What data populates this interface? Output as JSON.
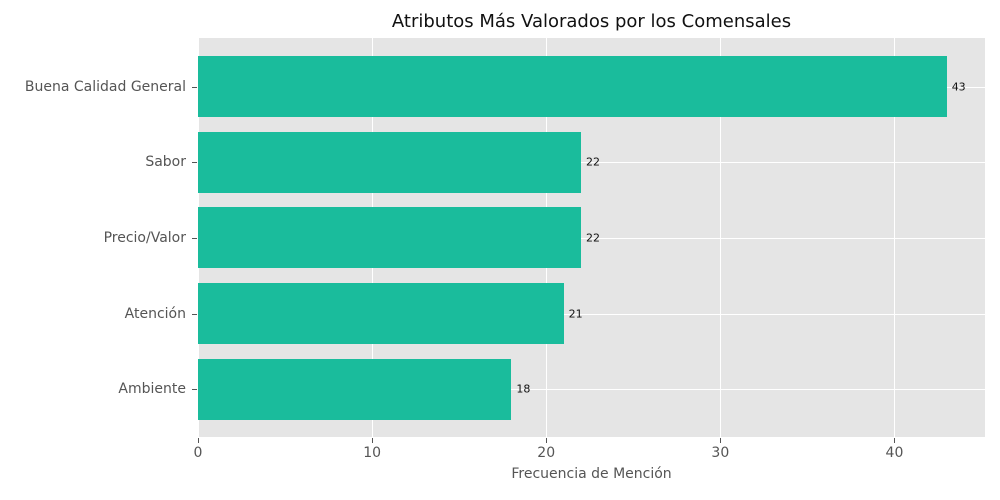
{
  "chart_data": {
    "type": "bar",
    "orientation": "horizontal",
    "title": "Atributos Más Valorados por los Comensales",
    "xlabel": "Frecuencia de Mención",
    "ylabel": "",
    "categories": [
      "Buena Calidad General",
      "Sabor",
      "Precio/Valor",
      "Atención",
      "Ambiente"
    ],
    "values": [
      43,
      22,
      22,
      21,
      18
    ],
    "data_labels": [
      "43",
      "22",
      "22",
      "21",
      "18"
    ],
    "xlim": [
      0,
      45.2
    ],
    "xticks": [
      0,
      10,
      20,
      30,
      40
    ],
    "xtick_labels": [
      "0",
      "10",
      "20",
      "30",
      "40"
    ],
    "grid": true,
    "legend": null,
    "colors": {
      "bar": "#1abc9c",
      "background": "#e5e5e5",
      "grid": "#ffffff"
    }
  }
}
